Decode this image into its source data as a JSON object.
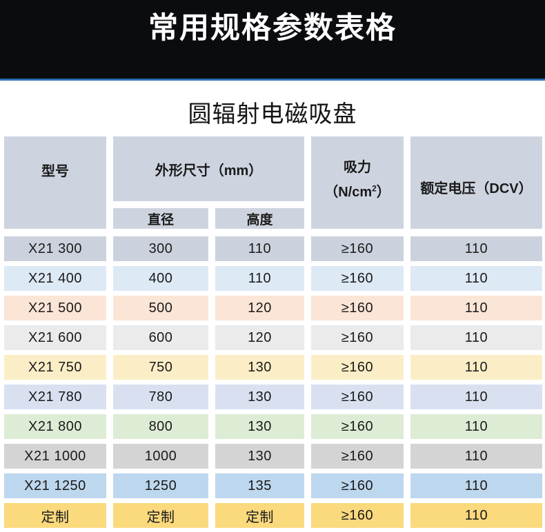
{
  "colors": {
    "banner_bg": "#0a0c10",
    "banner_text": "#ffffff",
    "divider_blue": "#2e6db4",
    "header_cell_bg": "#ced4df",
    "cell_text": "#1a1a1a"
  },
  "chart_data": {
    "type": "table",
    "banner_title": "常用规格参数表格",
    "product_title": "圆辐射电磁吸盘",
    "headers": {
      "model": "型号",
      "dimensions_group": "外形尺寸（mm）",
      "diameter": "直径",
      "height": "高度",
      "suction_name": "吸力",
      "suction_unit_pre": "（N/cm",
      "suction_unit_sup": "2",
      "suction_unit_post": "）",
      "voltage": "额定电压（DCV）"
    },
    "rows": [
      {
        "model": "X21 300",
        "diameter": "300",
        "height": "110",
        "suction": "≥160",
        "voltage": "110",
        "bg": "#ccd2dd"
      },
      {
        "model": "X21 400",
        "diameter": "400",
        "height": "110",
        "suction": "≥160",
        "voltage": "110",
        "bg": "#dde9f5"
      },
      {
        "model": "X21 500",
        "diameter": "500",
        "height": "120",
        "suction": "≥160",
        "voltage": "110",
        "bg": "#fbe5d6"
      },
      {
        "model": "X21 600",
        "diameter": "600",
        "height": "120",
        "suction": "≥160",
        "voltage": "110",
        "bg": "#ebebeb"
      },
      {
        "model": "X21 750",
        "diameter": "750",
        "height": "130",
        "suction": "≥160",
        "voltage": "110",
        "bg": "#fbeec6"
      },
      {
        "model": "X21 780",
        "diameter": "780",
        "height": "130",
        "suction": "≥160",
        "voltage": "110",
        "bg": "#d9e1f1"
      },
      {
        "model": "X21 800",
        "diameter": "800",
        "height": "130",
        "suction": "≥160",
        "voltage": "110",
        "bg": "#ddecd4"
      },
      {
        "model": "X21 1000",
        "diameter": "1000",
        "height": "130",
        "suction": "≥160",
        "voltage": "110",
        "bg": "#d4d4d4"
      },
      {
        "model": "X21 1250",
        "diameter": "1250",
        "height": "135",
        "suction": "≥160",
        "voltage": "110",
        "bg": "#bdd7ee"
      },
      {
        "model": "定制",
        "diameter": "定制",
        "height": "定制",
        "suction": "≥160",
        "voltage": "110",
        "bg": "#fbd97d"
      }
    ]
  }
}
